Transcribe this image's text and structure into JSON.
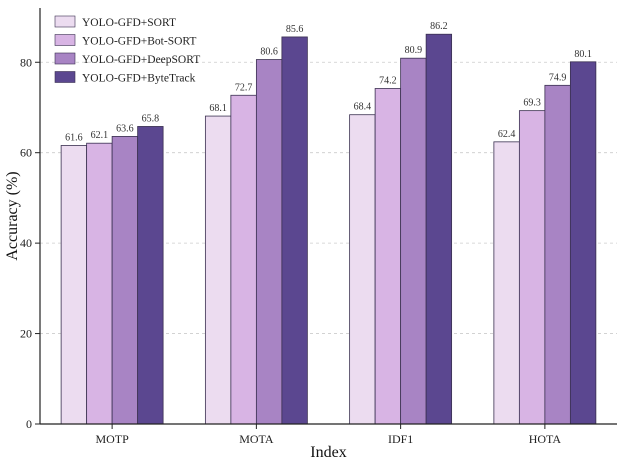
{
  "chart_data": {
    "type": "bar",
    "title": "",
    "xlabel": "Index",
    "ylabel": "Accuracy (%)",
    "categories": [
      "MOTP",
      "MOTA",
      "IDF1",
      "HOTA"
    ],
    "series": [
      {
        "name": "YOLO-GFD+SORT",
        "values": [
          61.6,
          68.1,
          68.4,
          62.4
        ],
        "color": "#ecdcf0"
      },
      {
        "name": "YOLO-GFD+Bot-SORT",
        "values": [
          62.1,
          72.7,
          74.2,
          69.3
        ],
        "color": "#d8b4e4"
      },
      {
        "name": "YOLO-GFD+DeepSORT",
        "values": [
          63.6,
          80.6,
          80.9,
          74.9
        ],
        "color": "#a884c4"
      },
      {
        "name": "YOLO-GFD+ByteTrack",
        "values": [
          65.8,
          85.6,
          86.2,
          80.1
        ],
        "color": "#5b4790"
      }
    ],
    "data_labels": [
      [
        "61.6",
        "68.1",
        "68.4",
        "62.4"
      ],
      [
        "62.1",
        "72.7",
        "74.2",
        "69.3"
      ],
      [
        "63.6",
        "80.6",
        "80.9",
        "74.9"
      ],
      [
        "65.8",
        "85.6",
        "86.2",
        "80.1"
      ]
    ],
    "ylim": [
      0,
      92
    ],
    "yticks": [
      0,
      20,
      40,
      60,
      80
    ],
    "ytick_labels": [
      "0",
      "20",
      "40",
      "60",
      "80"
    ],
    "grid": "horizontal dashed",
    "legend_position": "top-left"
  }
}
